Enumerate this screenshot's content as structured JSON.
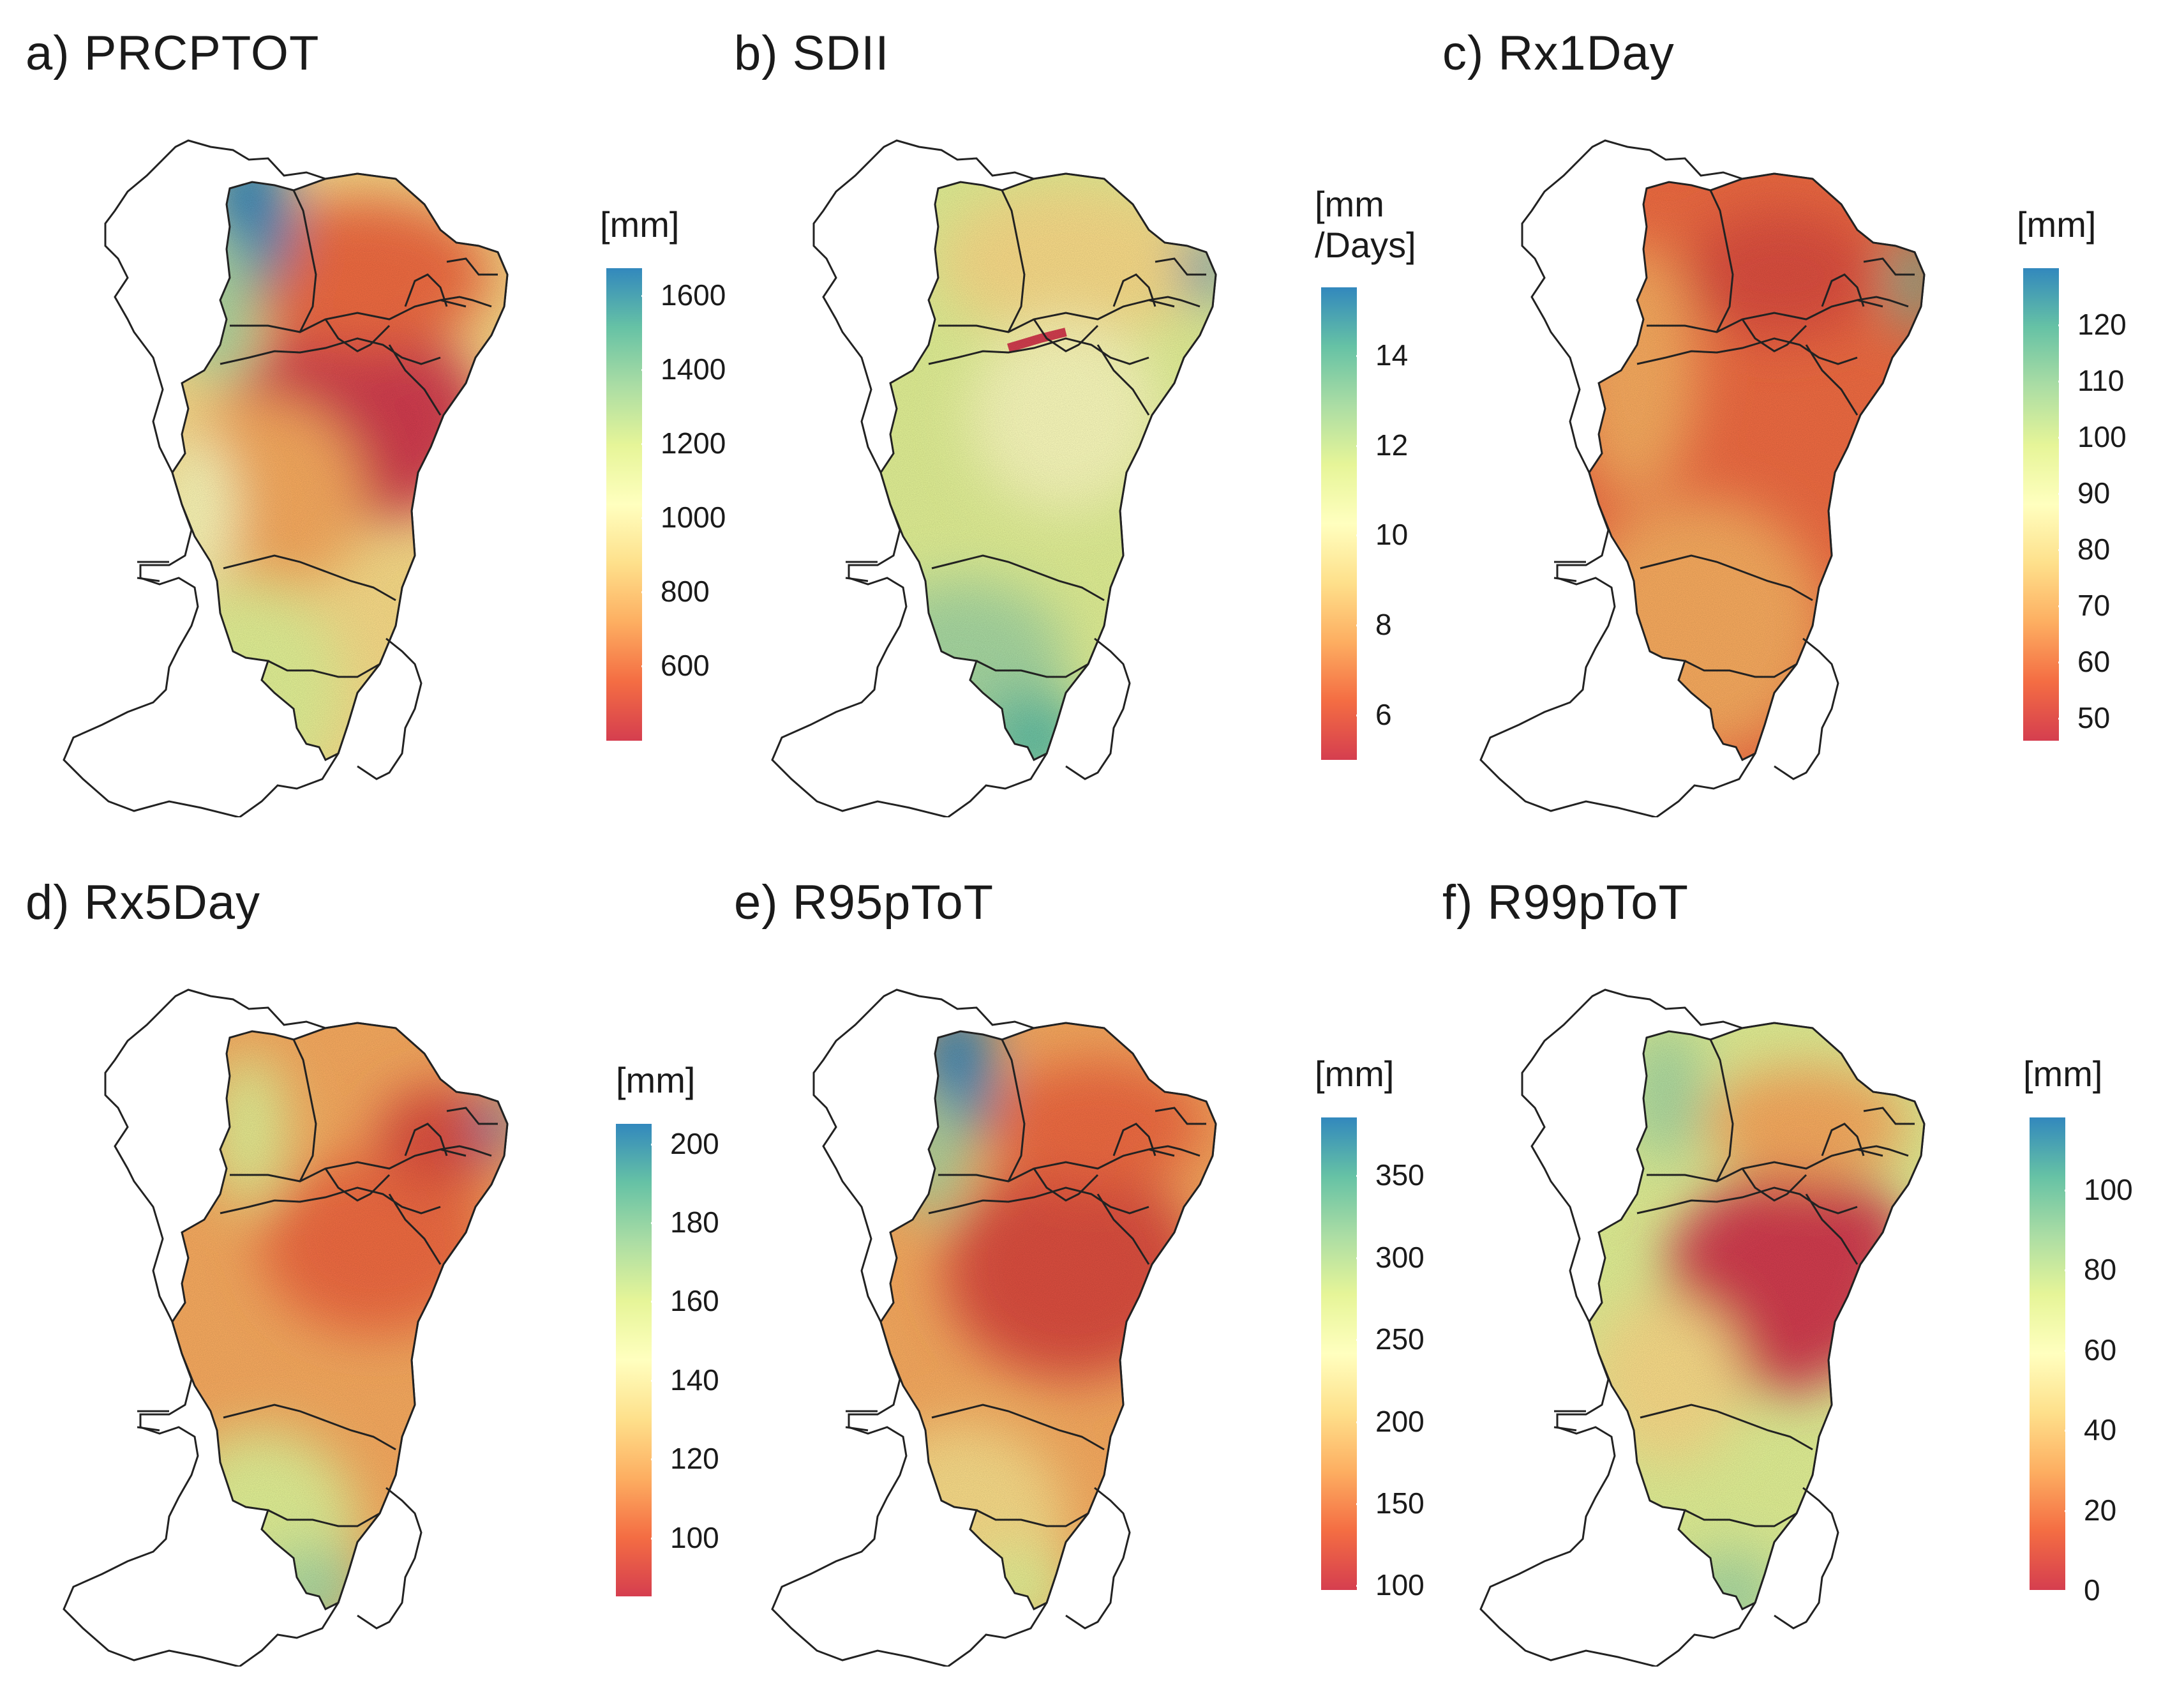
{
  "panels": [
    {
      "id": "a",
      "title": "a) PRCPTOT",
      "unit_lines": [
        "[mm]"
      ],
      "ticks": [
        "1600",
        "1400",
        "1200",
        "1000",
        "800",
        "600"
      ],
      "range": [
        400,
        1700
      ]
    },
    {
      "id": "b",
      "title": "b) SDII",
      "unit_lines": [
        "[mm",
        "/Days]"
      ],
      "ticks": [
        "14",
        "12",
        "10",
        "8",
        "6"
      ],
      "range": [
        5,
        15.5
      ]
    },
    {
      "id": "c",
      "title": "c) Rx1Day",
      "unit_lines": [
        "[mm]"
      ],
      "ticks": [
        "120",
        "110",
        "100",
        "90",
        "80",
        "70",
        "60",
        "50"
      ],
      "range": [
        46,
        130
      ]
    },
    {
      "id": "d",
      "title": "d) Rx5Day",
      "unit_lines": [
        "[mm]"
      ],
      "ticks": [
        "200",
        "180",
        "160",
        "140",
        "120",
        "100"
      ],
      "range": [
        85,
        205
      ]
    },
    {
      "id": "e",
      "title": "e) R95pToT",
      "unit_lines": [
        "[mm]"
      ],
      "ticks": [
        "350",
        "300",
        "250",
        "200",
        "150",
        "100"
      ],
      "range": [
        97,
        385
      ]
    },
    {
      "id": "f",
      "title": "f) R99pToT",
      "unit_lines": [
        "[mm]"
      ],
      "ticks": [
        "100",
        "80",
        "60",
        "40",
        "20",
        "0"
      ],
      "range": [
        0,
        118
      ]
    }
  ],
  "colormap": [
    "#d53e4f",
    "#f46d43",
    "#fdae61",
    "#fee08b",
    "#ffffbf",
    "#e6f598",
    "#abdda4",
    "#66c2a5",
    "#3288bd"
  ]
}
